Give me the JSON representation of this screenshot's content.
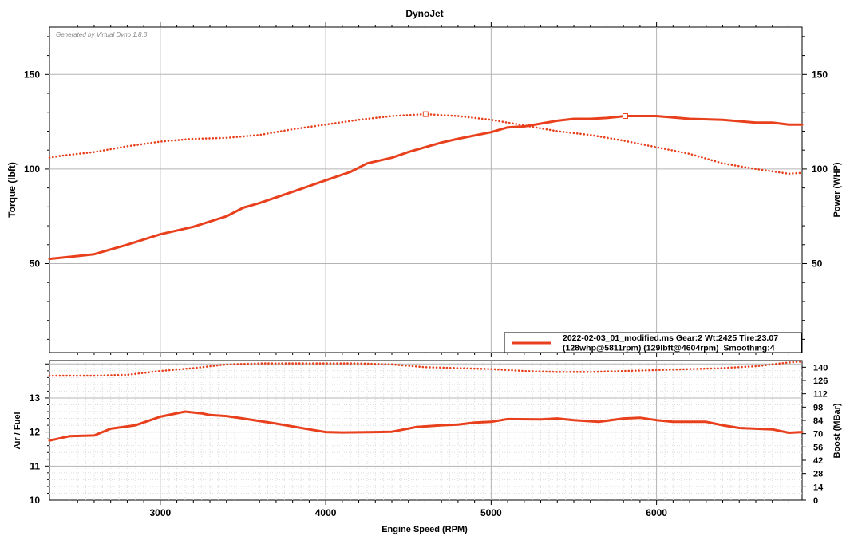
{
  "chart_data": [
    {
      "id": "main",
      "type": "line",
      "title": "DynoJet",
      "watermark": "Generated by Virtual Dyno 1.8.3",
      "ylabel": "Torque (lbft)",
      "y2label": "Power (WHP)",
      "xlim": [
        2330,
        6880
      ],
      "ylim": [
        3,
        175
      ],
      "y_ticks": [
        50,
        100,
        150
      ],
      "y_ticks_right": [
        50,
        100,
        150
      ],
      "grid": true,
      "legend_position": "bottom-right",
      "series": [
        {
          "name": "2022-02-03_01_modified.ms Gear:2 Wt:2425 Tire:23.07",
          "name_line2": "(128whp@5811rpm) (129lbft@4604rpm)  Smoothing:4",
          "role": "power",
          "style": "solid",
          "color": "#e8401c",
          "x": [
            2330,
            2500,
            2600,
            2800,
            3000,
            3200,
            3400,
            3500,
            3600,
            3800,
            4000,
            4150,
            4250,
            4400,
            4500,
            4700,
            4800,
            5000,
            5100,
            5200,
            5300,
            5400,
            5500,
            5600,
            5700,
            5811,
            6000,
            6200,
            6400,
            6600,
            6700,
            6800,
            6880
          ],
          "y": [
            52.5,
            54,
            55,
            60,
            65.5,
            69.5,
            75,
            79.5,
            82,
            88,
            94,
            98.5,
            103,
            106,
            109,
            114,
            116,
            119.5,
            122,
            122.5,
            124,
            125.5,
            126.5,
            126.5,
            127,
            128,
            128,
            126.5,
            126,
            124.5,
            124.5,
            123.5,
            123.5
          ]
        },
        {
          "name": "Torque",
          "role": "torque",
          "style": "dotted",
          "color": "#e8401c",
          "x": [
            2330,
            2400,
            2600,
            2800,
            3000,
            3200,
            3400,
            3600,
            3800,
            4000,
            4200,
            4400,
            4604,
            4800,
            5000,
            5200,
            5400,
            5600,
            5800,
            6000,
            6200,
            6400,
            6600,
            6800,
            6880
          ],
          "y": [
            106,
            107,
            109,
            112,
            114.5,
            116,
            116.5,
            118,
            121,
            123.5,
            126,
            128,
            129,
            128,
            126,
            123,
            120,
            118,
            115,
            111.5,
            108,
            103,
            100,
            97.5,
            98
          ]
        }
      ],
      "markers": [
        {
          "x": 4604,
          "y": 129
        },
        {
          "x": 5811,
          "y": 128
        }
      ]
    },
    {
      "id": "bottom",
      "type": "line",
      "ylabel": "Air / Fuel",
      "y2label": "Boost (MBar)",
      "xlabel": "Engine Speed (RPM)",
      "xlim": [
        2330,
        6880
      ],
      "x_ticks": [
        3000,
        4000,
        5000,
        6000
      ],
      "ylim": [
        10,
        14.1
      ],
      "y_ticks": [
        10,
        11,
        12,
        13
      ],
      "y2lim": [
        0,
        147
      ],
      "y2_ticks": [
        0,
        14,
        28,
        42,
        56,
        70,
        84,
        98,
        112,
        126,
        140
      ],
      "grid": true,
      "series": [
        {
          "name": "Air / Fuel",
          "style": "solid",
          "color": "#e8401c",
          "x": [
            2330,
            2450,
            2600,
            2700,
            2850,
            3000,
            3150,
            3250,
            3300,
            3400,
            3500,
            3700,
            3900,
            4000,
            4100,
            4300,
            4400,
            4550,
            4700,
            4800,
            4900,
            5000,
            5100,
            5300,
            5400,
            5500,
            5650,
            5800,
            5900,
            6000,
            6100,
            6300,
            6400,
            6500,
            6600,
            6700,
            6800,
            6880
          ],
          "y": [
            11.75,
            11.88,
            11.9,
            12.1,
            12.2,
            12.45,
            12.6,
            12.55,
            12.5,
            12.47,
            12.4,
            12.25,
            12.08,
            12.0,
            11.99,
            12.0,
            12.01,
            12.15,
            12.2,
            12.22,
            12.28,
            12.3,
            12.38,
            12.37,
            12.4,
            12.35,
            12.3,
            12.4,
            12.42,
            12.35,
            12.3,
            12.3,
            12.2,
            12.12,
            12.1,
            12.08,
            11.98,
            12.0
          ]
        },
        {
          "name": "Boost",
          "style": "dotted",
          "axis": "right",
          "color": "#e8401c",
          "x": [
            2330,
            2600,
            2800,
            3000,
            3200,
            3400,
            3600,
            3800,
            4000,
            4200,
            4400,
            4600,
            4800,
            5000,
            5200,
            5400,
            5600,
            5800,
            6000,
            6200,
            6400,
            6600,
            6800,
            6880
          ],
          "y": [
            131,
            131,
            132,
            136,
            139,
            143,
            144,
            144,
            144,
            144,
            143,
            140,
            139,
            138,
            136,
            135,
            135,
            136,
            137,
            138,
            139,
            141,
            145,
            146
          ]
        }
      ]
    }
  ]
}
